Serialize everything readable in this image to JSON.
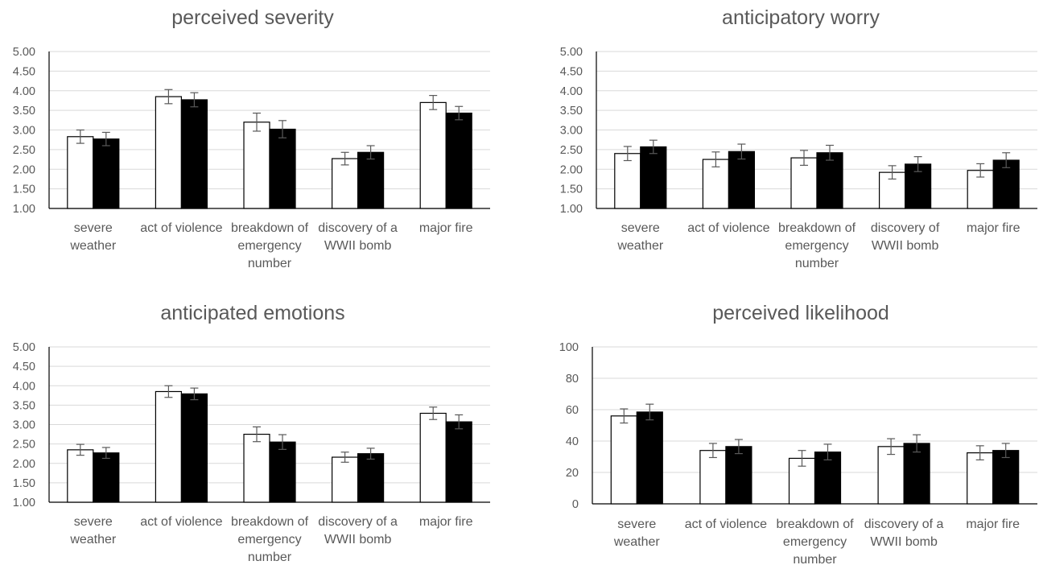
{
  "colors": {
    "series_a_fill": "#ffffff",
    "series_b_fill": "#000000",
    "bar_stroke": "#000000",
    "gridline": "#d9d9d9",
    "axis": "#000000",
    "text": "#595959",
    "errorbar": "#595959"
  },
  "chart_data": [
    {
      "type": "bar",
      "title": "perceived severity",
      "categories": [
        [
          "severe",
          "weather"
        ],
        [
          "act of violence"
        ],
        [
          "breakdown of",
          "emergency",
          "number"
        ],
        [
          "discovery of a",
          "WWII bomb"
        ],
        [
          "major fire"
        ]
      ],
      "series": [
        {
          "values": [
            2.83,
            3.85,
            3.2,
            2.27,
            3.7
          ],
          "errors": [
            0.17,
            0.18,
            0.23,
            0.16,
            0.18
          ]
        },
        {
          "values": [
            2.77,
            3.77,
            3.02,
            2.43,
            3.43
          ],
          "errors": [
            0.17,
            0.18,
            0.22,
            0.17,
            0.17
          ]
        }
      ],
      "ylim": [
        1.0,
        5.0
      ],
      "yticks": [
        "1.00",
        "1.50",
        "2.00",
        "2.50",
        "3.00",
        "3.50",
        "4.00",
        "4.50",
        "5.00"
      ],
      "grid": true,
      "legend": "none"
    },
    {
      "type": "bar",
      "title": "anticipatory worry",
      "categories": [
        [
          "severe",
          "weather"
        ],
        [
          "act of violence"
        ],
        [
          "breakdown of",
          "emergency",
          "number"
        ],
        [
          "discovery of",
          "WWII bomb"
        ],
        [
          "major fire"
        ]
      ],
      "series": [
        {
          "values": [
            2.4,
            2.25,
            2.29,
            1.92,
            1.97
          ],
          "errors": [
            0.18,
            0.19,
            0.19,
            0.17,
            0.17
          ]
        },
        {
          "values": [
            2.57,
            2.45,
            2.42,
            2.13,
            2.23
          ],
          "errors": [
            0.17,
            0.19,
            0.19,
            0.19,
            0.19
          ]
        }
      ],
      "ylim": [
        1.0,
        5.0
      ],
      "yticks": [
        "1.00",
        "1.50",
        "2.00",
        "2.50",
        "3.00",
        "3.50",
        "4.00",
        "4.50",
        "5.00"
      ],
      "grid": true,
      "legend": "none"
    },
    {
      "type": "bar",
      "title": "anticipated emotions",
      "categories": [
        [
          "severe",
          "weather"
        ],
        [
          "act of violence"
        ],
        [
          "breakdown of",
          "emergency",
          "number"
        ],
        [
          "discovery of a",
          "WWII bomb"
        ],
        [
          "major fire"
        ]
      ],
      "series": [
        {
          "values": [
            2.35,
            3.85,
            2.75,
            2.16,
            3.29
          ],
          "errors": [
            0.14,
            0.15,
            0.19,
            0.13,
            0.16
          ]
        },
        {
          "values": [
            2.27,
            3.79,
            2.55,
            2.25,
            3.07
          ],
          "errors": [
            0.14,
            0.15,
            0.19,
            0.14,
            0.18
          ]
        }
      ],
      "ylim": [
        1.0,
        5.0
      ],
      "yticks": [
        "1.00",
        "1.50",
        "2.00",
        "2.50",
        "3.00",
        "3.50",
        "4.00",
        "4.50",
        "5.00"
      ],
      "grid": true,
      "legend": "none"
    },
    {
      "type": "bar",
      "title": "perceived likelihood",
      "categories": [
        [
          "severe",
          "weather"
        ],
        [
          "act of violence"
        ],
        [
          "breakdown of",
          "emergency",
          "number"
        ],
        [
          "discovery of a",
          "WWII bomb"
        ],
        [
          "major fire"
        ]
      ],
      "series": [
        {
          "values": [
            56,
            34,
            29,
            36.5,
            32.5
          ],
          "errors": [
            4.5,
            4.5,
            5,
            5,
            4.5
          ]
        },
        {
          "values": [
            58.5,
            36.5,
            33,
            38.5,
            34
          ],
          "errors": [
            5,
            4.5,
            5,
            5.5,
            4.5
          ]
        }
      ],
      "ylim": [
        0,
        100
      ],
      "yticks": [
        "0",
        "20",
        "40",
        "60",
        "80",
        "100"
      ],
      "grid": true,
      "legend": "none"
    }
  ]
}
